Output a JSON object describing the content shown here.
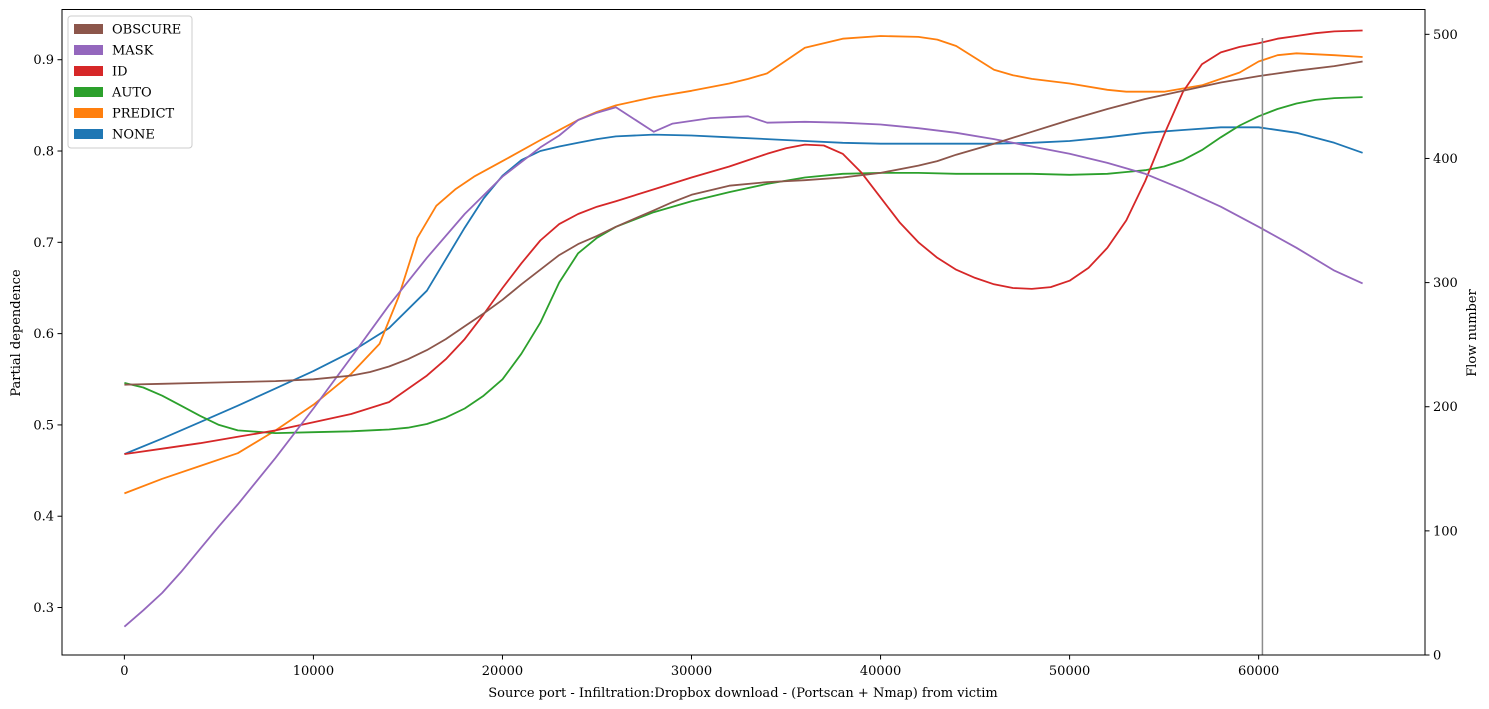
{
  "chart_data": {
    "type": "line",
    "xlabel": "Source port - Infiltration:Dropbox download - (Portscan + Nmap) from victim",
    "ylabel": "Partial dependence",
    "y2label": "Flow number",
    "xlim": [
      -3300,
      68800
    ],
    "ylim": [
      0.248,
      0.955
    ],
    "y2lim": [
      0,
      520
    ],
    "x_ticks": [
      0,
      10000,
      20000,
      30000,
      40000,
      50000,
      60000
    ],
    "x_tick_labels": [
      "0",
      "10000",
      "20000",
      "30000",
      "40000",
      "50000",
      "60000"
    ],
    "y_ticks": [
      0.3,
      0.4,
      0.5,
      0.6,
      0.7,
      0.8,
      0.9
    ],
    "y_tick_labels": [
      "0.3",
      "0.4",
      "0.5",
      "0.6",
      "0.7",
      "0.8",
      "0.9"
    ],
    "y2_ticks": [
      0,
      100,
      200,
      300,
      400,
      500
    ],
    "y2_tick_labels": [
      "0",
      "100",
      "200",
      "300",
      "400",
      "500"
    ],
    "grid": false,
    "legend_position": "top-left",
    "vline": {
      "x": 60200,
      "y2_top": 497,
      "color": "#8c8c8c"
    },
    "legend": [
      {
        "name": "OBSCURE",
        "color": "#8c564b"
      },
      {
        "name": "MASK",
        "color": "#9467bd"
      },
      {
        "name": "ID",
        "color": "#d62728"
      },
      {
        "name": "AUTO",
        "color": "#2ca02c"
      },
      {
        "name": "PREDICT",
        "color": "#ff7f0e"
      },
      {
        "name": "NONE",
        "color": "#1f77b4"
      }
    ],
    "series": [
      {
        "name": "NONE",
        "color": "#1f77b4",
        "x": [
          0,
          2000,
          4000,
          6000,
          8000,
          10000,
          12000,
          14000,
          16000,
          18000,
          19000,
          20000,
          21000,
          22000,
          23000,
          24000,
          25000,
          26000,
          28000,
          30000,
          32000,
          34000,
          36000,
          38000,
          40000,
          42000,
          44000,
          46000,
          48000,
          50000,
          52000,
          54000,
          56000,
          58000,
          60000,
          62000,
          64000,
          65500
        ],
        "y": [
          0.468,
          0.485,
          0.503,
          0.521,
          0.54,
          0.559,
          0.58,
          0.606,
          0.647,
          0.716,
          0.748,
          0.773,
          0.79,
          0.8,
          0.805,
          0.809,
          0.813,
          0.816,
          0.818,
          0.817,
          0.815,
          0.813,
          0.811,
          0.809,
          0.808,
          0.808,
          0.808,
          0.808,
          0.809,
          0.811,
          0.815,
          0.82,
          0.823,
          0.826,
          0.826,
          0.82,
          0.809,
          0.798
        ]
      },
      {
        "name": "PREDICT",
        "color": "#ff7f0e",
        "x": [
          0,
          2000,
          4000,
          6000,
          8000,
          10000,
          12000,
          13500,
          14500,
          15500,
          16500,
          17500,
          18500,
          20000,
          22000,
          24000,
          25000,
          26000,
          28000,
          30000,
          32000,
          33000,
          34000,
          35000,
          36000,
          38000,
          40000,
          42000,
          43000,
          44000,
          45000,
          46000,
          47000,
          48000,
          50000,
          52000,
          53000,
          55000,
          57000,
          58000,
          59000,
          60000,
          61000,
          62000,
          64000,
          65500
        ],
        "y": [
          0.425,
          0.441,
          0.455,
          0.469,
          0.494,
          0.522,
          0.556,
          0.589,
          0.64,
          0.705,
          0.74,
          0.758,
          0.772,
          0.789,
          0.812,
          0.834,
          0.843,
          0.85,
          0.859,
          0.866,
          0.874,
          0.879,
          0.885,
          0.899,
          0.913,
          0.923,
          0.926,
          0.925,
          0.922,
          0.915,
          0.902,
          0.889,
          0.883,
          0.879,
          0.874,
          0.867,
          0.865,
          0.865,
          0.872,
          0.879,
          0.886,
          0.898,
          0.905,
          0.907,
          0.905,
          0.903
        ]
      },
      {
        "name": "AUTO",
        "color": "#2ca02c",
        "x": [
          0,
          1000,
          2000,
          3000,
          4000,
          5000,
          6000,
          8000,
          10000,
          12000,
          14000,
          15000,
          16000,
          17000,
          18000,
          19000,
          20000,
          21000,
          22000,
          23000,
          24000,
          25000,
          26000,
          28000,
          30000,
          32000,
          34000,
          36000,
          38000,
          40000,
          42000,
          44000,
          46000,
          48000,
          50000,
          52000,
          53000,
          54000,
          55000,
          56000,
          57000,
          58000,
          59000,
          60000,
          61000,
          62000,
          63000,
          64000,
          65500
        ],
        "y": [
          0.546,
          0.541,
          0.532,
          0.521,
          0.51,
          0.5,
          0.494,
          0.491,
          0.492,
          0.493,
          0.495,
          0.497,
          0.501,
          0.508,
          0.518,
          0.532,
          0.55,
          0.578,
          0.612,
          0.656,
          0.688,
          0.705,
          0.717,
          0.733,
          0.745,
          0.755,
          0.764,
          0.771,
          0.775,
          0.776,
          0.776,
          0.775,
          0.775,
          0.775,
          0.774,
          0.775,
          0.777,
          0.779,
          0.783,
          0.79,
          0.801,
          0.815,
          0.828,
          0.838,
          0.846,
          0.852,
          0.856,
          0.858,
          0.859
        ]
      },
      {
        "name": "ID",
        "color": "#d62728",
        "x": [
          0,
          2000,
          4000,
          6000,
          8000,
          10000,
          12000,
          14000,
          16000,
          17000,
          18000,
          19000,
          20000,
          21000,
          22000,
          23000,
          24000,
          25000,
          26000,
          28000,
          30000,
          31000,
          32000,
          33000,
          34000,
          35000,
          36000,
          37000,
          38000,
          39000,
          40000,
          41000,
          42000,
          43000,
          44000,
          45000,
          46000,
          47000,
          48000,
          49000,
          50000,
          51000,
          52000,
          53000,
          54000,
          55000,
          56000,
          57000,
          58000,
          59000,
          60000,
          61000,
          62000,
          63000,
          64000,
          65500
        ],
        "y": [
          0.468,
          0.474,
          0.48,
          0.487,
          0.494,
          0.503,
          0.512,
          0.525,
          0.554,
          0.572,
          0.594,
          0.621,
          0.65,
          0.677,
          0.702,
          0.72,
          0.731,
          0.739,
          0.745,
          0.758,
          0.771,
          0.777,
          0.783,
          0.79,
          0.797,
          0.803,
          0.807,
          0.806,
          0.797,
          0.776,
          0.749,
          0.722,
          0.7,
          0.683,
          0.67,
          0.661,
          0.654,
          0.65,
          0.649,
          0.651,
          0.658,
          0.672,
          0.694,
          0.724,
          0.767,
          0.818,
          0.865,
          0.895,
          0.908,
          0.914,
          0.918,
          0.923,
          0.926,
          0.929,
          0.931,
          0.932
        ]
      },
      {
        "name": "MASK",
        "color": "#9467bd",
        "x": [
          0,
          1000,
          2000,
          3000,
          4000,
          5000,
          6000,
          8000,
          10000,
          12000,
          14000,
          16000,
          18000,
          20000,
          22000,
          23000,
          24000,
          25000,
          26000,
          28000,
          29000,
          30000,
          31000,
          32000,
          33000,
          34000,
          36000,
          38000,
          40000,
          42000,
          44000,
          46000,
          48000,
          50000,
          52000,
          54000,
          56000,
          58000,
          60000,
          62000,
          64000,
          65500
        ],
        "y": [
          0.279,
          0.297,
          0.316,
          0.339,
          0.364,
          0.389,
          0.413,
          0.464,
          0.518,
          0.574,
          0.631,
          0.683,
          0.731,
          0.772,
          0.804,
          0.817,
          0.834,
          0.842,
          0.848,
          0.821,
          0.83,
          0.833,
          0.836,
          0.837,
          0.838,
          0.831,
          0.832,
          0.831,
          0.829,
          0.825,
          0.82,
          0.813,
          0.805,
          0.797,
          0.787,
          0.775,
          0.758,
          0.739,
          0.717,
          0.694,
          0.669,
          0.655
        ]
      },
      {
        "name": "OBSCURE",
        "color": "#8c564b",
        "x": [
          0,
          2000,
          4000,
          6000,
          8000,
          10000,
          12000,
          13000,
          14000,
          15000,
          16000,
          17000,
          18000,
          19000,
          20000,
          21000,
          22000,
          23000,
          24000,
          25000,
          26000,
          27000,
          28000,
          29000,
          30000,
          32000,
          34000,
          36000,
          38000,
          40000,
          42000,
          43000,
          44000,
          46000,
          48000,
          50000,
          52000,
          54000,
          56000,
          58000,
          60000,
          62000,
          64000,
          65500
        ],
        "y": [
          0.544,
          0.545,
          0.546,
          0.547,
          0.548,
          0.55,
          0.554,
          0.558,
          0.564,
          0.572,
          0.582,
          0.594,
          0.608,
          0.622,
          0.637,
          0.654,
          0.67,
          0.686,
          0.698,
          0.707,
          0.717,
          0.726,
          0.735,
          0.744,
          0.752,
          0.762,
          0.766,
          0.768,
          0.771,
          0.776,
          0.784,
          0.789,
          0.796,
          0.808,
          0.821,
          0.834,
          0.846,
          0.857,
          0.866,
          0.875,
          0.882,
          0.888,
          0.893,
          0.898
        ]
      }
    ]
  }
}
